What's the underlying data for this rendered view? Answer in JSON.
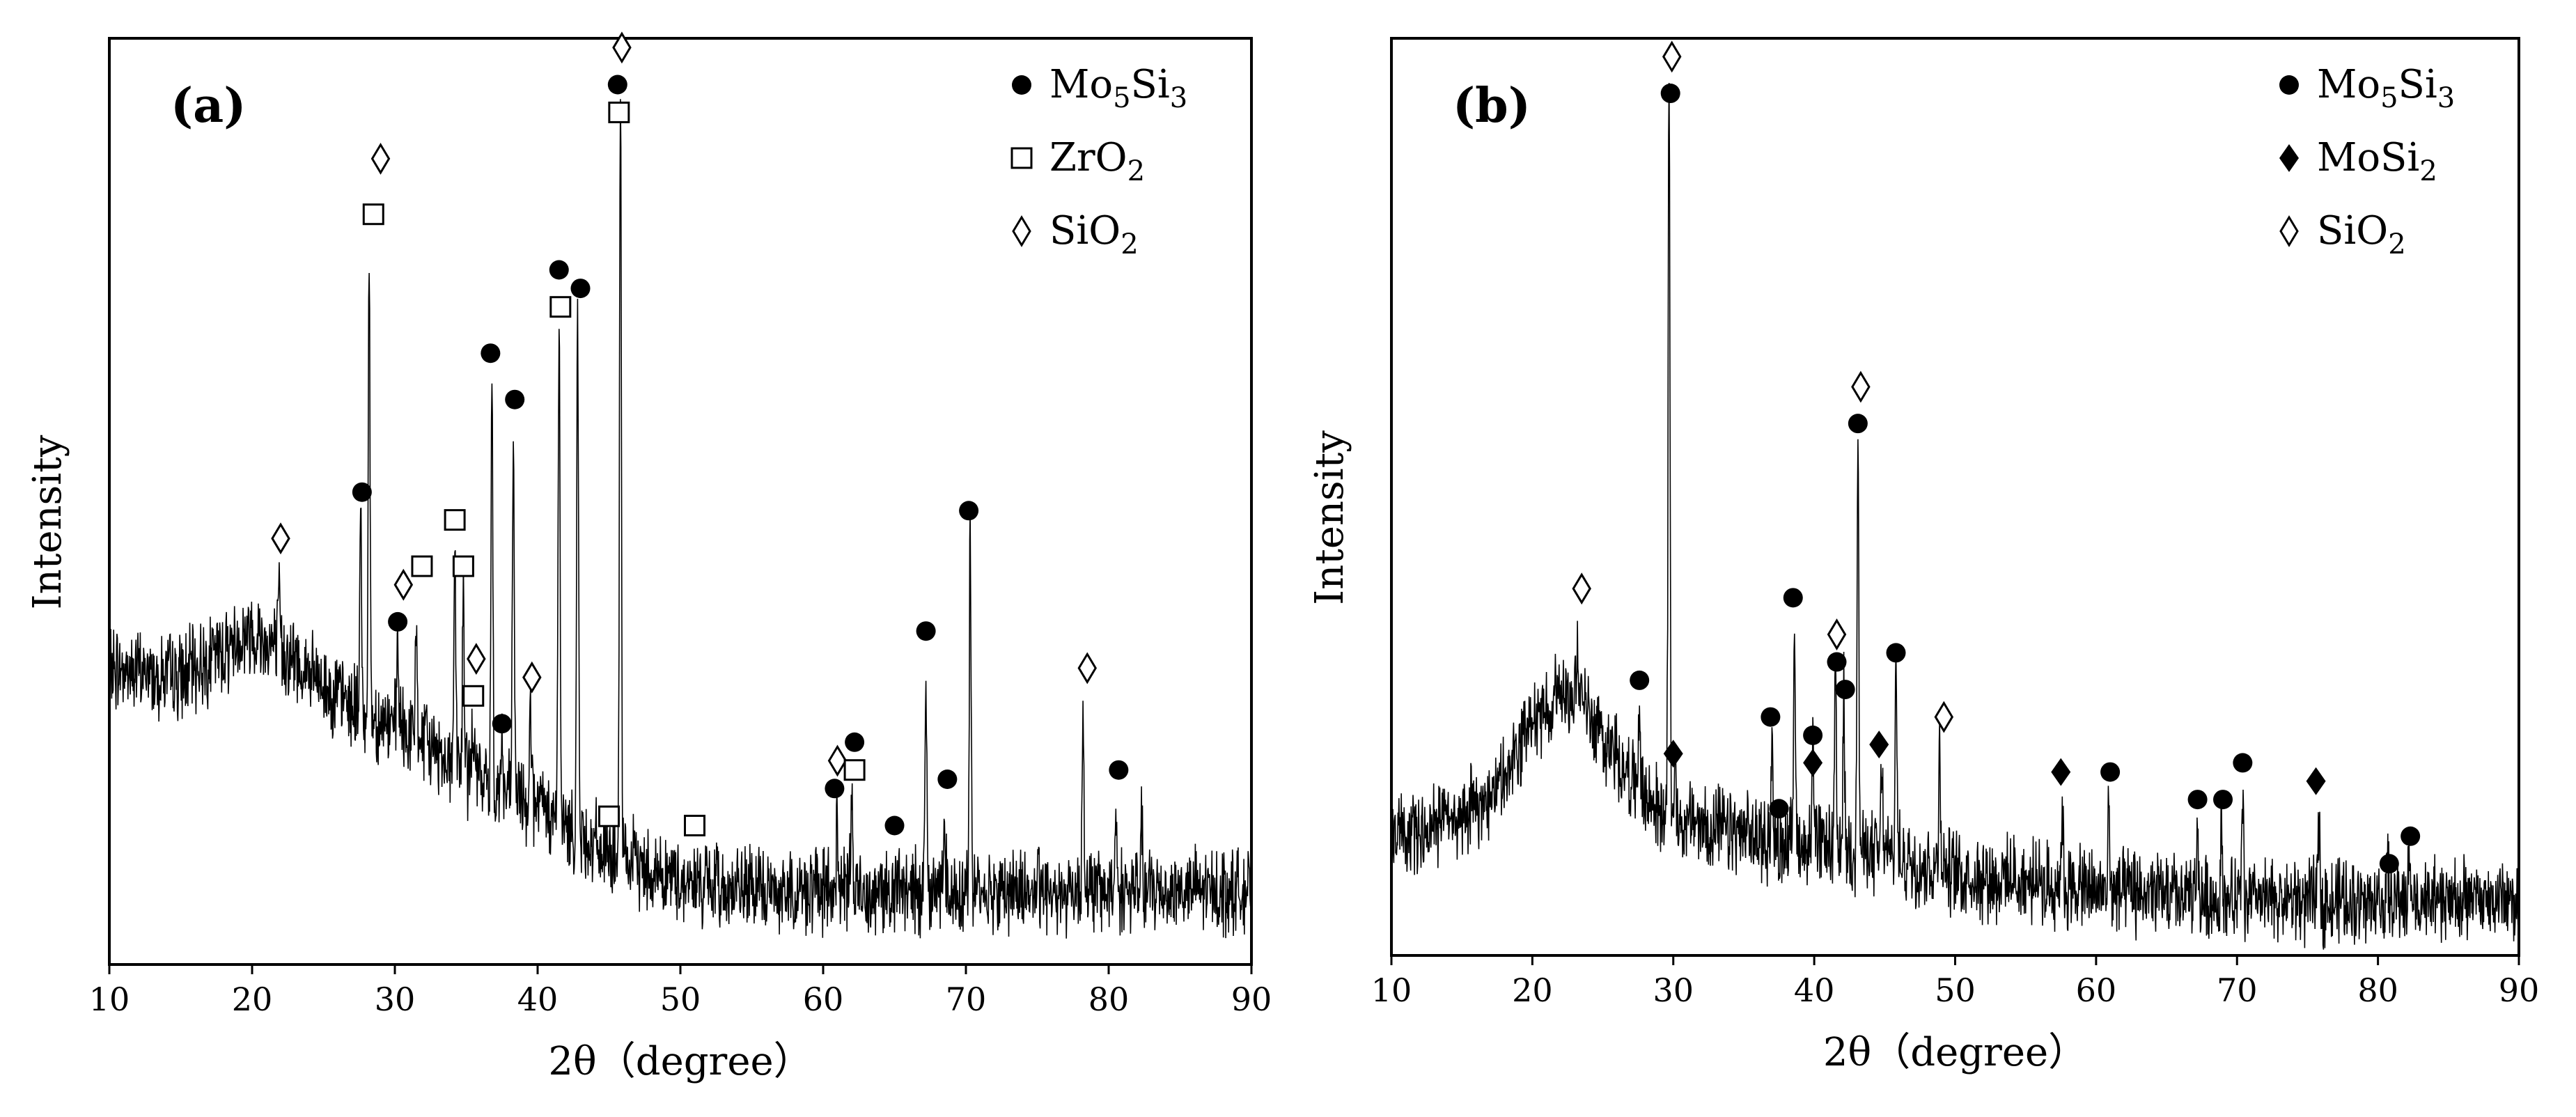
{
  "chart_data": [
    {
      "type": "line",
      "panel_label": "(a)",
      "xlabel": "2θ（degree）",
      "ylabel": "Intensity",
      "xlim": [
        10,
        90
      ],
      "ylim": [
        0,
        100
      ],
      "xticks": [
        "10",
        "20",
        "30",
        "40",
        "50",
        "60",
        "70",
        "80",
        "90"
      ],
      "legend": [
        {
          "symbol": "filled-circle",
          "text": "Mo",
          "sub1": "5",
          "text2": "Si",
          "sub2": "3"
        },
        {
          "symbol": "open-square",
          "text": "ZrO",
          "sub1": "2",
          "text2": "",
          "sub2": ""
        },
        {
          "symbol": "open-diamond",
          "text": "SiO",
          "sub1": "2",
          "text2": "",
          "sub2": ""
        }
      ],
      "legend_position": "top-right",
      "baseline": [
        [
          10,
          32
        ],
        [
          15,
          31
        ],
        [
          18,
          34
        ],
        [
          20,
          36
        ],
        [
          22,
          34
        ],
        [
          25,
          30
        ],
        [
          28,
          27
        ],
        [
          32,
          24
        ],
        [
          36,
          20
        ],
        [
          40,
          17
        ],
        [
          45,
          12
        ],
        [
          50,
          9
        ],
        [
          55,
          8
        ],
        [
          60,
          8
        ],
        [
          65,
          8
        ],
        [
          70,
          8
        ],
        [
          75,
          8
        ],
        [
          80,
          8
        ],
        [
          85,
          8
        ],
        [
          90,
          8
        ]
      ],
      "peaks": [
        {
          "x": 21.9,
          "h": 40
        },
        {
          "x": 27.6,
          "h": 48
        },
        {
          "x": 28.2,
          "h": 75
        },
        {
          "x": 30.2,
          "h": 35
        },
        {
          "x": 31.5,
          "h": 37
        },
        {
          "x": 34.2,
          "h": 45
        },
        {
          "x": 34.8,
          "h": 40
        },
        {
          "x": 35.5,
          "h": 27
        },
        {
          "x": 36.8,
          "h": 63
        },
        {
          "x": 37.5,
          "h": 24
        },
        {
          "x": 38.3,
          "h": 58
        },
        {
          "x": 39.5,
          "h": 30
        },
        {
          "x": 41.5,
          "h": 71
        },
        {
          "x": 42.8,
          "h": 70
        },
        {
          "x": 45.8,
          "h": 94
        },
        {
          "x": 61.0,
          "h": 16
        },
        {
          "x": 62.0,
          "h": 18
        },
        {
          "x": 67.2,
          "h": 33
        },
        {
          "x": 68.5,
          "h": 18
        },
        {
          "x": 70.3,
          "h": 46
        },
        {
          "x": 78.2,
          "h": 28
        },
        {
          "x": 80.5,
          "h": 17
        },
        {
          "x": 82.3,
          "h": 15
        }
      ],
      "markers": [
        {
          "x": 22.0,
          "y": 46,
          "symbol": "open-diamond"
        },
        {
          "x": 27.7,
          "y": 51,
          "symbol": "filled-circle"
        },
        {
          "x": 28.5,
          "y": 81,
          "symbol": "open-square"
        },
        {
          "x": 29.0,
          "y": 87,
          "symbol": "open-diamond"
        },
        {
          "x": 30.2,
          "y": 37,
          "symbol": "filled-circle"
        },
        {
          "x": 30.6,
          "y": 41,
          "symbol": "open-diamond"
        },
        {
          "x": 31.9,
          "y": 43,
          "symbol": "open-square"
        },
        {
          "x": 34.2,
          "y": 48,
          "symbol": "open-square"
        },
        {
          "x": 34.8,
          "y": 43,
          "symbol": "open-square"
        },
        {
          "x": 35.7,
          "y": 33,
          "symbol": "open-diamond"
        },
        {
          "x": 35.5,
          "y": 29,
          "symbol": "open-square"
        },
        {
          "x": 36.7,
          "y": 66,
          "symbol": "filled-circle"
        },
        {
          "x": 37.5,
          "y": 26,
          "symbol": "filled-circle"
        },
        {
          "x": 38.4,
          "y": 61,
          "symbol": "filled-circle"
        },
        {
          "x": 39.6,
          "y": 31,
          "symbol": "open-diamond"
        },
        {
          "x": 41.5,
          "y": 75,
          "symbol": "filled-circle"
        },
        {
          "x": 41.6,
          "y": 71,
          "symbol": "open-square"
        },
        {
          "x": 43.0,
          "y": 73,
          "symbol": "filled-circle"
        },
        {
          "x": 45.0,
          "y": 16,
          "symbol": "open-square"
        },
        {
          "x": 45.6,
          "y": 95,
          "symbol": "filled-circle"
        },
        {
          "x": 45.7,
          "y": 92,
          "symbol": "open-square"
        },
        {
          "x": 45.9,
          "y": 99,
          "symbol": "open-diamond"
        },
        {
          "x": 51.0,
          "y": 15,
          "symbol": "open-square"
        },
        {
          "x": 60.8,
          "y": 19,
          "symbol": "filled-circle"
        },
        {
          "x": 61.0,
          "y": 22,
          "symbol": "open-diamond"
        },
        {
          "x": 62.2,
          "y": 24,
          "symbol": "filled-circle"
        },
        {
          "x": 62.2,
          "y": 21,
          "symbol": "open-square"
        },
        {
          "x": 65.0,
          "y": 15,
          "symbol": "filled-circle"
        },
        {
          "x": 67.2,
          "y": 36,
          "symbol": "filled-circle"
        },
        {
          "x": 68.7,
          "y": 20,
          "symbol": "filled-circle"
        },
        {
          "x": 70.2,
          "y": 49,
          "symbol": "filled-circle"
        },
        {
          "x": 78.5,
          "y": 32,
          "symbol": "open-diamond"
        },
        {
          "x": 80.7,
          "y": 21,
          "symbol": "filled-circle"
        }
      ]
    },
    {
      "type": "line",
      "panel_label": "(b)",
      "xlabel": "2θ（degree）",
      "ylabel": "Intensity",
      "xlim": [
        10,
        90
      ],
      "ylim": [
        0,
        100
      ],
      "xticks": [
        "10",
        "20",
        "30",
        "40",
        "50",
        "60",
        "70",
        "80",
        "90"
      ],
      "legend": [
        {
          "symbol": "filled-circle",
          "text": "Mo",
          "sub1": "5",
          "text2": "Si",
          "sub2": "3"
        },
        {
          "symbol": "filled-diamond",
          "text": "MoSi",
          "sub1": "2",
          "text2": "",
          "sub2": ""
        },
        {
          "symbol": "open-diamond",
          "text": "SiO",
          "sub1": "2",
          "text2": "",
          "sub2": ""
        }
      ],
      "legend_position": "top-right",
      "baseline": [
        [
          10,
          13
        ],
        [
          15,
          15
        ],
        [
          18,
          19
        ],
        [
          20,
          25
        ],
        [
          22,
          29
        ],
        [
          23,
          29
        ],
        [
          25,
          24
        ],
        [
          28,
          17
        ],
        [
          30,
          15
        ],
        [
          35,
          13
        ],
        [
          40,
          12
        ],
        [
          45,
          11
        ],
        [
          50,
          9
        ],
        [
          55,
          8
        ],
        [
          60,
          7
        ],
        [
          70,
          6
        ],
        [
          80,
          6
        ],
        [
          90,
          6
        ]
      ],
      "peaks": [
        {
          "x": 23.2,
          "h": 36
        },
        {
          "x": 27.6,
          "h": 27
        },
        {
          "x": 29.7,
          "h": 98
        },
        {
          "x": 30.1,
          "h": 22
        },
        {
          "x": 37.0,
          "h": 23
        },
        {
          "x": 38.6,
          "h": 37
        },
        {
          "x": 39.9,
          "h": 24
        },
        {
          "x": 41.5,
          "h": 30
        },
        {
          "x": 42.1,
          "h": 28
        },
        {
          "x": 43.1,
          "h": 56
        },
        {
          "x": 44.8,
          "h": 21
        },
        {
          "x": 45.8,
          "h": 32
        },
        {
          "x": 48.9,
          "h": 24
        },
        {
          "x": 57.6,
          "h": 17
        },
        {
          "x": 60.9,
          "h": 16
        },
        {
          "x": 67.2,
          "h": 13
        },
        {
          "x": 68.9,
          "h": 14
        },
        {
          "x": 70.4,
          "h": 18
        },
        {
          "x": 75.8,
          "h": 15
        },
        {
          "x": 80.7,
          "h": 9
        },
        {
          "x": 82.2,
          "h": 11
        }
      ],
      "markers": [
        {
          "x": 23.5,
          "y": 40,
          "symbol": "open-diamond"
        },
        {
          "x": 27.6,
          "y": 30,
          "symbol": "filled-circle"
        },
        {
          "x": 29.9,
          "y": 98,
          "symbol": "open-diamond"
        },
        {
          "x": 29.8,
          "y": 94,
          "symbol": "filled-circle"
        },
        {
          "x": 30.0,
          "y": 22,
          "symbol": "filled-diamond"
        },
        {
          "x": 36.9,
          "y": 26,
          "symbol": "filled-circle"
        },
        {
          "x": 37.5,
          "y": 16,
          "symbol": "filled-circle"
        },
        {
          "x": 38.5,
          "y": 39,
          "symbol": "filled-circle"
        },
        {
          "x": 39.9,
          "y": 24,
          "symbol": "filled-circle"
        },
        {
          "x": 39.9,
          "y": 21,
          "symbol": "filled-diamond"
        },
        {
          "x": 41.6,
          "y": 35,
          "symbol": "open-diamond"
        },
        {
          "x": 41.6,
          "y": 32,
          "symbol": "filled-circle"
        },
        {
          "x": 42.2,
          "y": 29,
          "symbol": "filled-circle"
        },
        {
          "x": 43.1,
          "y": 58,
          "symbol": "filled-circle"
        },
        {
          "x": 43.3,
          "y": 62,
          "symbol": "open-diamond"
        },
        {
          "x": 44.6,
          "y": 23,
          "symbol": "filled-diamond"
        },
        {
          "x": 45.8,
          "y": 33,
          "symbol": "filled-circle"
        },
        {
          "x": 49.2,
          "y": 26,
          "symbol": "open-diamond"
        },
        {
          "x": 57.5,
          "y": 20,
          "symbol": "filled-diamond"
        },
        {
          "x": 61.0,
          "y": 20,
          "symbol": "filled-circle"
        },
        {
          "x": 67.2,
          "y": 17,
          "symbol": "filled-circle"
        },
        {
          "x": 69.0,
          "y": 17,
          "symbol": "filled-circle"
        },
        {
          "x": 70.4,
          "y": 21,
          "symbol": "filled-circle"
        },
        {
          "x": 75.6,
          "y": 19,
          "symbol": "filled-diamond"
        },
        {
          "x": 80.8,
          "y": 10,
          "symbol": "filled-circle"
        },
        {
          "x": 82.3,
          "y": 13,
          "symbol": "filled-circle"
        }
      ]
    }
  ]
}
